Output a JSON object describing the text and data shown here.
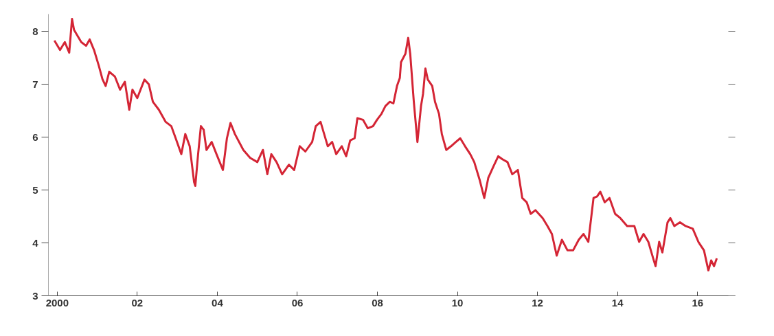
{
  "chart_data": {
    "type": "line",
    "grid": false,
    "marker": "none",
    "line_style": "solid",
    "xlim": [
      1999.78,
      2016.94
    ],
    "ylim": [
      3,
      8.33
    ],
    "xticks": [
      {
        "value": 2000,
        "label": "2000"
      },
      {
        "value": 2002,
        "label": "02"
      },
      {
        "value": 2004,
        "label": "04"
      },
      {
        "value": 2006,
        "label": "06"
      },
      {
        "value": 2008,
        "label": "08"
      },
      {
        "value": 2010,
        "label": "10"
      },
      {
        "value": 2012,
        "label": "12"
      },
      {
        "value": 2014,
        "label": "14"
      },
      {
        "value": 2016,
        "label": "16"
      }
    ],
    "yticks": [
      3,
      4,
      5,
      6,
      7,
      8
    ],
    "series": [
      {
        "color": "#d42535",
        "x": [
          1999.93,
          2000.07,
          2000.19,
          2000.3,
          2000.37,
          2000.42,
          2000.6,
          2000.72,
          2000.81,
          2000.92,
          2001.04,
          2001.13,
          2001.21,
          2001.3,
          2001.44,
          2001.57,
          2001.69,
          2001.8,
          2001.88,
          2002.0,
          2002.18,
          2002.29,
          2002.39,
          2002.54,
          2002.71,
          2002.85,
          2002.96,
          2003.1,
          2003.2,
          2003.31,
          2003.42,
          2003.45,
          2003.52,
          2003.59,
          2003.66,
          2003.73,
          2003.86,
          2003.98,
          2004.14,
          2004.24,
          2004.33,
          2004.44,
          2004.65,
          2004.82,
          2005.0,
          2005.14,
          2005.25,
          2005.35,
          2005.48,
          2005.62,
          2005.79,
          2005.92,
          2006.06,
          2006.2,
          2006.37,
          2006.46,
          2006.58,
          2006.67,
          2006.76,
          2006.87,
          2006.97,
          2007.11,
          2007.22,
          2007.32,
          2007.43,
          2007.5,
          2007.64,
          2007.76,
          2007.89,
          2007.99,
          2008.1,
          2008.2,
          2008.31,
          2008.4,
          2008.49,
          2008.56,
          2008.59,
          2008.7,
          2008.77,
          2008.82,
          2008.91,
          2009.0,
          2009.09,
          2009.14,
          2009.2,
          2009.26,
          2009.37,
          2009.44,
          2009.54,
          2009.61,
          2009.72,
          2009.84,
          2009.96,
          2010.07,
          2010.19,
          2010.32,
          2010.42,
          2010.56,
          2010.67,
          2010.77,
          2010.9,
          2011.02,
          2011.13,
          2011.25,
          2011.37,
          2011.51,
          2011.62,
          2011.73,
          2011.83,
          2011.95,
          2012.13,
          2012.25,
          2012.36,
          2012.48,
          2012.61,
          2012.75,
          2012.89,
          2013.03,
          2013.15,
          2013.27,
          2013.4,
          2013.49,
          2013.57,
          2013.68,
          2013.8,
          2013.94,
          2014.07,
          2014.24,
          2014.42,
          2014.54,
          2014.65,
          2014.77,
          2014.89,
          2014.95,
          2015.04,
          2015.12,
          2015.25,
          2015.32,
          2015.42,
          2015.56,
          2015.7,
          2015.88,
          2016.02,
          2016.16,
          2016.27,
          2016.34,
          2016.41,
          2016.48
        ],
        "values": [
          7.83,
          7.65,
          7.8,
          7.6,
          8.24,
          8.03,
          7.8,
          7.73,
          7.85,
          7.65,
          7.35,
          7.1,
          6.97,
          7.24,
          7.15,
          6.9,
          7.05,
          6.52,
          6.9,
          6.74,
          7.09,
          7.0,
          6.67,
          6.52,
          6.29,
          6.21,
          5.98,
          5.68,
          6.06,
          5.83,
          5.15,
          5.08,
          5.68,
          6.21,
          6.14,
          5.76,
          5.91,
          5.68,
          5.38,
          5.98,
          6.27,
          6.06,
          5.76,
          5.61,
          5.53,
          5.76,
          5.3,
          5.68,
          5.53,
          5.3,
          5.48,
          5.38,
          5.83,
          5.73,
          5.91,
          6.21,
          6.29,
          6.06,
          5.83,
          5.91,
          5.68,
          5.83,
          5.64,
          5.94,
          5.98,
          6.36,
          6.33,
          6.17,
          6.21,
          6.33,
          6.44,
          6.59,
          6.67,
          6.64,
          6.97,
          7.12,
          7.42,
          7.58,
          7.88,
          7.58,
          6.67,
          5.91,
          6.59,
          6.82,
          7.3,
          7.09,
          6.97,
          6.67,
          6.44,
          6.06,
          5.76,
          5.83,
          5.91,
          5.98,
          5.83,
          5.68,
          5.53,
          5.18,
          4.85,
          5.23,
          5.45,
          5.64,
          5.58,
          5.53,
          5.3,
          5.38,
          4.85,
          4.77,
          4.55,
          4.62,
          4.47,
          4.32,
          4.17,
          3.76,
          4.06,
          3.86,
          3.86,
          4.06,
          4.17,
          4.02,
          4.85,
          4.88,
          4.97,
          4.77,
          4.85,
          4.55,
          4.47,
          4.32,
          4.32,
          4.02,
          4.17,
          4.02,
          3.71,
          3.56,
          4.02,
          3.82,
          4.39,
          4.47,
          4.32,
          4.39,
          4.32,
          4.27,
          4.02,
          3.86,
          3.48,
          3.67,
          3.56,
          3.71
        ]
      }
    ]
  }
}
